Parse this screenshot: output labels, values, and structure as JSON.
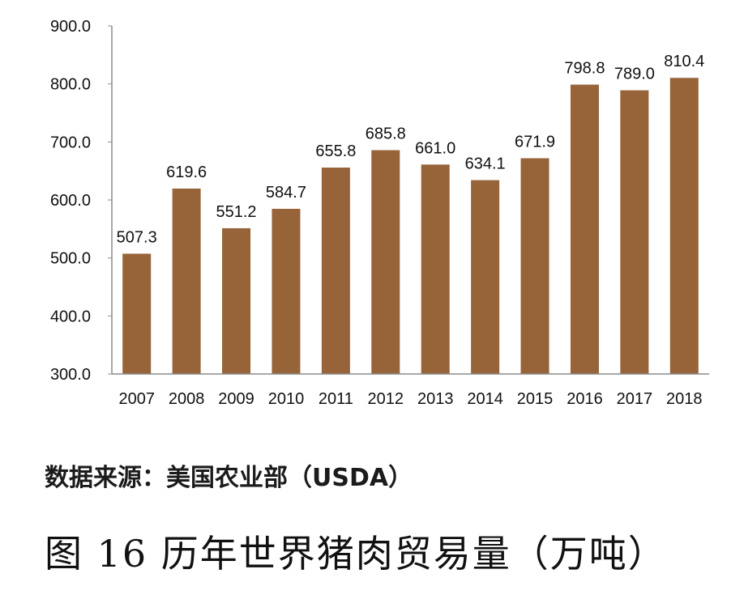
{
  "chart_data": {
    "type": "bar",
    "categories": [
      "2007",
      "2008",
      "2009",
      "2010",
      "2011",
      "2012",
      "2013",
      "2014",
      "2015",
      "2016",
      "2017",
      "2018"
    ],
    "values": [
      507.3,
      619.6,
      551.2,
      584.7,
      655.8,
      685.8,
      661.0,
      634.1,
      671.9,
      798.8,
      789.0,
      810.4
    ],
    "value_labels": [
      "507.3",
      "619.6",
      "551.2",
      "584.7",
      "655.8",
      "685.8",
      "661.0",
      "634.1",
      "671.9",
      "798.8",
      "789.0",
      "810.4"
    ],
    "ylim": [
      300,
      900
    ],
    "yticks": [
      "300.0",
      "400.0",
      "500.0",
      "600.0",
      "700.0",
      "800.0",
      "900.0"
    ],
    "grid": false,
    "bar_color": "#97643a",
    "axis_color": "#8c8c8c"
  },
  "source_note": "数据来源：美国农业部（USDA）",
  "figure_caption": "图 16  历年世界猪肉贸易量（万吨）"
}
